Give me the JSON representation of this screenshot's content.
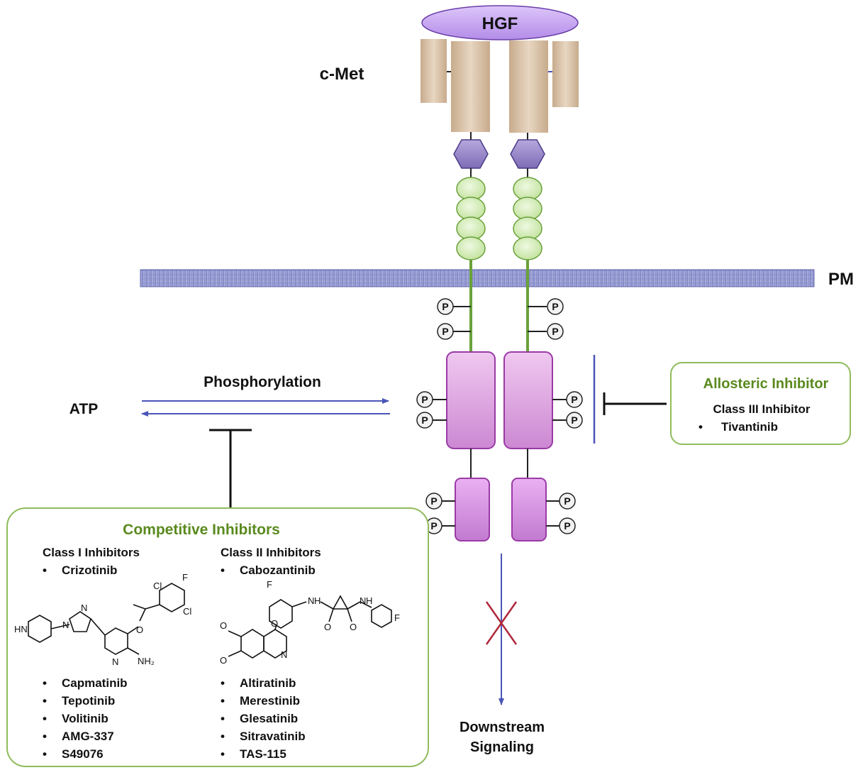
{
  "ligand": {
    "label": "HGF"
  },
  "receptor": {
    "label": "c-Met"
  },
  "membrane": {
    "label": "PM"
  },
  "reaction": {
    "substrate": "ATP",
    "process": "Phosphorylation"
  },
  "phospho_label": "P",
  "downstream": {
    "line1": "Downstream",
    "line2": "Signaling"
  },
  "allosteric": {
    "title": "Allosteric Inhibitor",
    "class_label": "Class III Inhibitor",
    "drugs": [
      "Tivantinib"
    ]
  },
  "competitive": {
    "title": "Competitive Inhibitors",
    "class1": {
      "label": "Class I Inhibitors",
      "featured": "Crizotinib",
      "others": [
        "Capmatinib",
        "Tepotinib",
        "Volitinib",
        "AMG-337",
        "S49076"
      ]
    },
    "class2": {
      "label": "Class II Inhibitors",
      "featured": "Cabozantinib",
      "others": [
        "Altiratinib",
        "Merestinib",
        "Glesatinib",
        "Sitravatinib",
        "TAS-115"
      ]
    }
  },
  "structures": {
    "crizotinib_atoms": [
      "HN",
      "N",
      "N",
      "Cl",
      "F",
      "O",
      "Cl",
      "N",
      "NH₂"
    ],
    "cabozantinib_atoms": [
      "F",
      "O",
      "O",
      "O",
      "N",
      "H",
      "O",
      "O",
      "N",
      "H",
      "F",
      "N"
    ]
  },
  "colors": {
    "hgf": "#c9a6f5",
    "extracellular": "#dcc6ae",
    "sema_hex": "#9a86c9",
    "ig_domain": "#d8eebc",
    "membrane": "#8d93cc",
    "kinase": "#c46fc8",
    "accent_green": "#5a8a1e",
    "arrow_blue": "#4a55b8",
    "block_red": "#b0283a"
  }
}
